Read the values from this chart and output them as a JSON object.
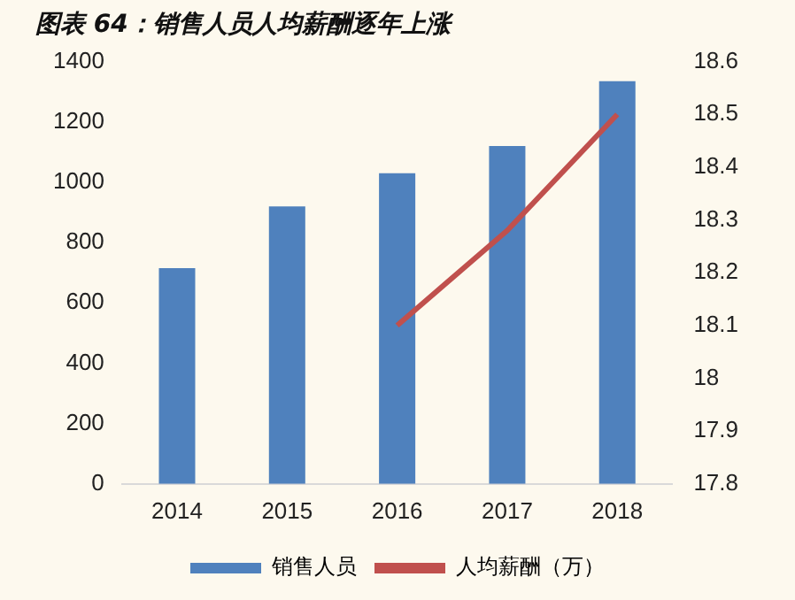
{
  "chart_data": {
    "type": "bar",
    "title": "图表 64：销售人员人均薪酬逐年上涨",
    "categories": [
      "2014",
      "2015",
      "2016",
      "2017",
      "2018"
    ],
    "series": [
      {
        "name": "销售人员",
        "color": "#4f81bd",
        "values": [
          715,
          920,
          1030,
          1120,
          1335
        ]
      },
      {
        "name": "人均薪酬（万）",
        "type": "line",
        "axis": "y2",
        "color": "#c0504d",
        "values": [
          null,
          null,
          18.1,
          18.28,
          18.5
        ]
      }
    ],
    "ylim": [
      0,
      1400
    ],
    "yticks": [
      0,
      200,
      400,
      600,
      800,
      1000,
      1200,
      1400
    ],
    "y2lim": [
      17.8,
      18.6
    ],
    "y2ticks": [
      17.8,
      17.9,
      18,
      18.1,
      18.2,
      18.3,
      18.4,
      18.5,
      18.6
    ],
    "grid": false,
    "legend": "bottom"
  }
}
